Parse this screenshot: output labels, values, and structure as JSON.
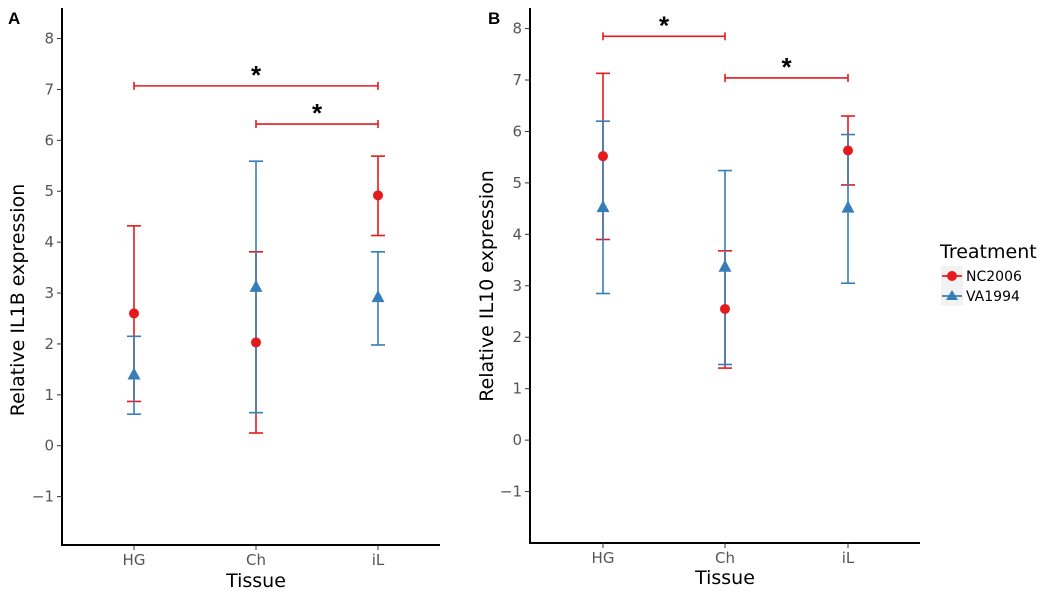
{
  "legend": {
    "title": "Treatment",
    "entries": [
      {
        "name": "NC2006",
        "color": "#E41A1C",
        "marker": "circle"
      },
      {
        "name": "VA1994",
        "color": "#377EB8",
        "marker": "triangle"
      }
    ]
  },
  "chart_data": [
    {
      "type": "scatter",
      "panel_label": "A",
      "xlabel": "Tissue",
      "ylabel": "Relative IL1B expression",
      "categories": [
        "HG",
        "Ch",
        "iL"
      ],
      "yticks": [
        -1,
        0,
        1,
        2,
        3,
        4,
        5,
        6,
        7,
        8
      ],
      "ylim": [
        -1.95,
        8.6
      ],
      "series": [
        {
          "name": "NC2006",
          "color": "#E41A1C",
          "marker": "circle",
          "values": [
            2.6,
            2.03,
            4.92
          ],
          "lower": [
            0.87,
            0.25,
            4.13
          ],
          "upper": [
            4.32,
            3.81,
            5.69
          ]
        },
        {
          "name": "VA1994",
          "color": "#377EB8",
          "marker": "triangle",
          "values": [
            1.4,
            3.12,
            2.92
          ],
          "lower": [
            0.62,
            0.65,
            1.98
          ],
          "upper": [
            2.15,
            5.59,
            3.81
          ]
        }
      ],
      "significance": [
        {
          "from": "HG",
          "to": "iL",
          "y": 7.07,
          "label": "*"
        },
        {
          "from": "Ch",
          "to": "iL",
          "y": 6.32,
          "label": "*"
        }
      ]
    },
    {
      "type": "scatter",
      "panel_label": "B",
      "xlabel": "Tissue",
      "ylabel": "Relative IL10 expression",
      "categories": [
        "HG",
        "Ch",
        "iL"
      ],
      "yticks": [
        -1,
        0,
        1,
        2,
        3,
        4,
        5,
        6,
        7,
        8
      ],
      "ylim": [
        -2.0,
        8.4
      ],
      "series": [
        {
          "name": "NC2006",
          "color": "#E41A1C",
          "marker": "circle",
          "values": [
            5.52,
            2.55,
            5.63
          ],
          "lower": [
            3.9,
            1.4,
            4.96
          ],
          "upper": [
            7.13,
            3.68,
            6.3
          ]
        },
        {
          "name": "VA1994",
          "color": "#377EB8",
          "marker": "triangle",
          "values": [
            4.53,
            3.37,
            4.52
          ],
          "lower": [
            2.85,
            1.47,
            3.05
          ],
          "upper": [
            6.2,
            5.24,
            5.94
          ]
        }
      ],
      "significance": [
        {
          "from": "HG",
          "to": "Ch",
          "y": 7.85,
          "label": "*"
        },
        {
          "from": "Ch",
          "to": "iL",
          "y": 7.04,
          "label": "*"
        }
      ]
    }
  ]
}
